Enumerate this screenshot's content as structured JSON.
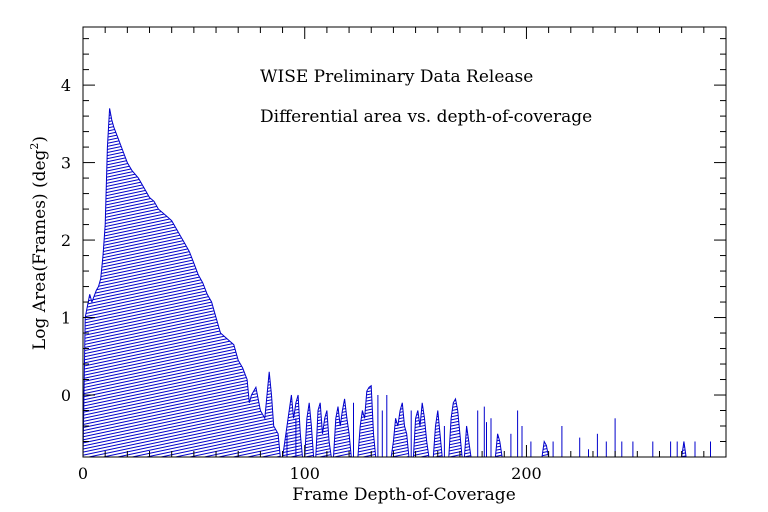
{
  "chart_data": {
    "type": "area",
    "annotations": [
      "WISE Preliminary Data Release",
      "Differential area vs. depth-of-coverage"
    ],
    "xlabel": "Frame Depth-of-Coverage",
    "ylabel_main": "Log Area(Frames) (deg",
    "ylabel_sup": "2",
    "ylabel_tail": ")",
    "xlim": [
      0,
      290
    ],
    "ylim": [
      -0.8,
      4.75
    ],
    "x_ticks": [
      0,
      100,
      200
    ],
    "y_ticks": [
      0,
      1,
      2,
      3,
      4
    ],
    "x_tick_labels": [
      "0",
      "100",
      "200"
    ],
    "y_tick_labels": [
      "0",
      "1",
      "2",
      "3",
      "4"
    ],
    "grid": false,
    "colors": {
      "fill": "#0000cc",
      "outline": "#0000cc",
      "axes": "#000000"
    },
    "series": [
      {
        "points": [
          [
            0,
            -0.8
          ],
          [
            1,
            1.0
          ],
          [
            3,
            1.3
          ],
          [
            4,
            1.2
          ],
          [
            6,
            1.35
          ],
          [
            7,
            1.4
          ],
          [
            8,
            1.5
          ],
          [
            9,
            1.8
          ],
          [
            10,
            2.2
          ],
          [
            11,
            3.2
          ],
          [
            12,
            3.7
          ],
          [
            13,
            3.55
          ],
          [
            14,
            3.45
          ],
          [
            16,
            3.3
          ],
          [
            18,
            3.15
          ],
          [
            20,
            3.0
          ],
          [
            22,
            2.9
          ],
          [
            25,
            2.8
          ],
          [
            28,
            2.65
          ],
          [
            30,
            2.55
          ],
          [
            32,
            2.5
          ],
          [
            34,
            2.4
          ],
          [
            36,
            2.35
          ],
          [
            38,
            2.3
          ],
          [
            40,
            2.25
          ],
          [
            42,
            2.15
          ],
          [
            44,
            2.05
          ],
          [
            46,
            1.95
          ],
          [
            48,
            1.85
          ],
          [
            50,
            1.7
          ],
          [
            52,
            1.55
          ],
          [
            54,
            1.45
          ],
          [
            56,
            1.3
          ],
          [
            58,
            1.2
          ],
          [
            60,
            1.0
          ],
          [
            62,
            0.8
          ],
          [
            64,
            0.75
          ],
          [
            66,
            0.7
          ],
          [
            68,
            0.65
          ],
          [
            70,
            0.45
          ],
          [
            72,
            0.35
          ],
          [
            74,
            0.2
          ],
          [
            75,
            -0.1
          ],
          [
            76,
            0.0
          ],
          [
            78,
            0.1
          ],
          [
            80,
            -0.2
          ],
          [
            82,
            -0.3
          ],
          [
            84,
            0.3
          ],
          [
            85,
            0.0
          ],
          [
            86,
            -0.4
          ],
          [
            88,
            -0.5
          ],
          [
            89,
            -0.8
          ],
          [
            90,
            -0.8
          ],
          [
            92,
            -0.4
          ],
          [
            93,
            -0.2
          ],
          [
            94,
            0.0
          ],
          [
            95,
            -0.3
          ],
          [
            96,
            -0.1
          ],
          [
            97,
            0.0
          ],
          [
            98,
            -0.5
          ],
          [
            99,
            -0.8
          ],
          [
            100,
            -0.8
          ],
          [
            101,
            -0.3
          ],
          [
            102,
            -0.1
          ],
          [
            103,
            -0.4
          ],
          [
            104,
            -0.8
          ],
          [
            105,
            -0.8
          ],
          [
            106,
            -0.2
          ],
          [
            107,
            -0.1
          ],
          [
            108,
            -0.5
          ],
          [
            109,
            -0.3
          ],
          [
            110,
            -0.2
          ],
          [
            111,
            -0.6
          ],
          [
            112,
            -0.8
          ],
          [
            113,
            -0.8
          ],
          [
            114,
            -0.3
          ],
          [
            115,
            -0.15
          ],
          [
            116,
            -0.4
          ],
          [
            117,
            -0.2
          ],
          [
            118,
            -0.05
          ],
          [
            119,
            -0.3
          ],
          [
            120,
            -0.5
          ],
          [
            121,
            -0.8
          ],
          [
            124,
            -0.8
          ],
          [
            125,
            -0.4
          ],
          [
            126,
            -0.2
          ],
          [
            127,
            -0.3
          ],
          [
            128,
            0.05
          ],
          [
            129,
            0.1
          ],
          [
            130,
            0.12
          ],
          [
            131,
            -0.5
          ],
          [
            132,
            -0.8
          ],
          [
            139,
            -0.8
          ],
          [
            140,
            -0.6
          ],
          [
            141,
            -0.3
          ],
          [
            142,
            -0.4
          ],
          [
            143,
            -0.2
          ],
          [
            144,
            -0.1
          ],
          [
            145,
            -0.4
          ],
          [
            146,
            -0.5
          ],
          [
            147,
            -0.8
          ],
          [
            149,
            -0.8
          ],
          [
            150,
            -0.3
          ],
          [
            151,
            -0.2
          ],
          [
            152,
            -0.4
          ],
          [
            153,
            -0.1
          ],
          [
            154,
            -0.3
          ],
          [
            155,
            -0.6
          ],
          [
            156,
            -0.8
          ],
          [
            158,
            -0.8
          ],
          [
            159,
            -0.4
          ],
          [
            160,
            -0.2
          ],
          [
            161,
            -0.5
          ],
          [
            162,
            -0.8
          ],
          [
            165,
            -0.8
          ],
          [
            166,
            -0.3
          ],
          [
            167,
            -0.1
          ],
          [
            168,
            -0.05
          ],
          [
            169,
            -0.2
          ],
          [
            170,
            -0.5
          ],
          [
            171,
            -0.8
          ],
          [
            172,
            -0.8
          ],
          [
            173,
            -0.4
          ],
          [
            174,
            -0.6
          ],
          [
            175,
            -0.8
          ],
          [
            186,
            -0.8
          ],
          [
            187,
            -0.5
          ],
          [
            188,
            -0.6
          ],
          [
            189,
            -0.8
          ],
          [
            207,
            -0.8
          ],
          [
            208,
            -0.6
          ],
          [
            209,
            -0.65
          ],
          [
            210,
            -0.8
          ],
          [
            270,
            -0.8
          ],
          [
            271,
            -0.6
          ],
          [
            272,
            -0.8
          ]
        ]
      }
    ],
    "spikes": [
      [
        92,
        -0.5
      ],
      [
        96,
        -0.3
      ],
      [
        122,
        -0.1
      ],
      [
        133,
        0.0
      ],
      [
        135,
        -0.2
      ],
      [
        137,
        0.0
      ],
      [
        148,
        -0.2
      ],
      [
        163,
        -0.4
      ],
      [
        178,
        -0.2
      ],
      [
        181,
        -0.15
      ],
      [
        182,
        -0.35
      ],
      [
        184,
        -0.3
      ],
      [
        193,
        -0.5
      ],
      [
        196,
        -0.2
      ],
      [
        198,
        -0.4
      ],
      [
        202,
        -0.6
      ],
      [
        212,
        -0.6
      ],
      [
        216,
        -0.4
      ],
      [
        224,
        -0.55
      ],
      [
        228,
        -0.7
      ],
      [
        232,
        -0.5
      ],
      [
        236,
        -0.6
      ],
      [
        240,
        -0.3
      ],
      [
        243,
        -0.6
      ],
      [
        248,
        -0.6
      ],
      [
        257,
        -0.6
      ],
      [
        265,
        -0.6
      ],
      [
        268,
        -0.6
      ],
      [
        276,
        -0.6
      ],
      [
        283,
        -0.6
      ]
    ]
  }
}
